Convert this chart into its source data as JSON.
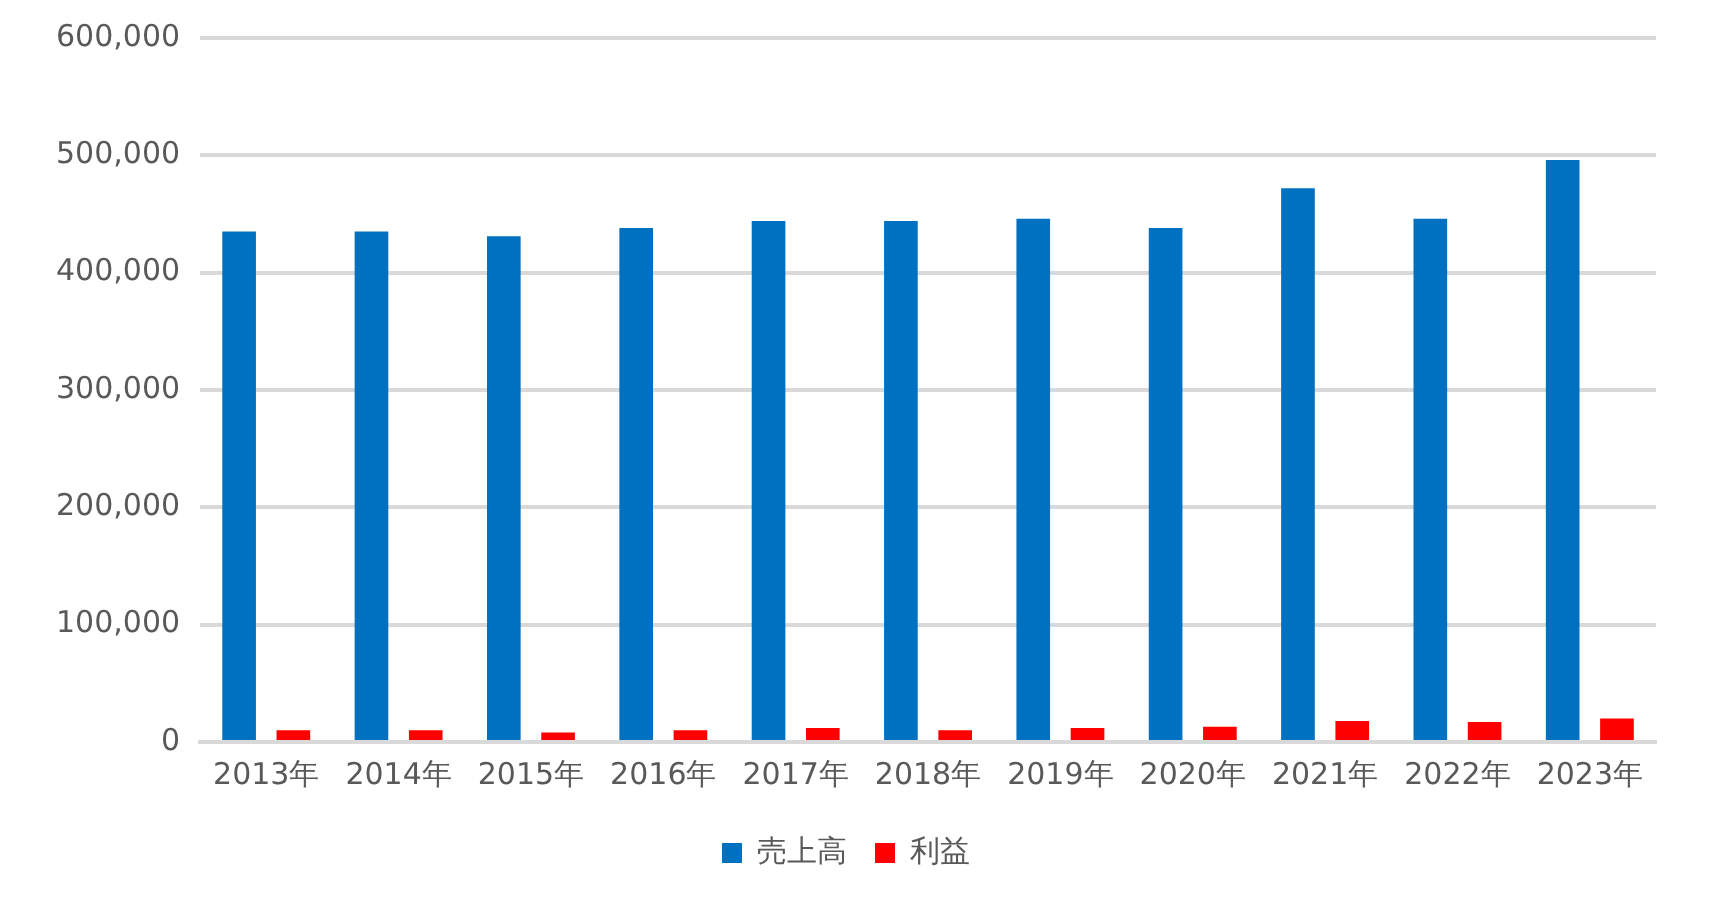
{
  "chart_data": {
    "type": "bar",
    "categories": [
      "2013年",
      "2014年",
      "2015年",
      "2016年",
      "2017年",
      "2018年",
      "2019年",
      "2020年",
      "2021年",
      "2022年",
      "2023年"
    ],
    "series": [
      {
        "name": "売上高",
        "color": "#0070c0",
        "values": [
          435000,
          435000,
          431000,
          438000,
          444000,
          444000,
          446000,
          438000,
          472000,
          446000,
          496000
        ]
      },
      {
        "name": "利益",
        "color": "#ff0000",
        "values": [
          10000,
          10000,
          8000,
          10000,
          12000,
          10000,
          12000,
          13000,
          18000,
          17000,
          20000
        ]
      }
    ],
    "ylim": [
      0,
      600000
    ],
    "yticks": [
      {
        "value": 0,
        "label": "0"
      },
      {
        "value": 100000,
        "label": "100,000"
      },
      {
        "value": 200000,
        "label": "200,000"
      },
      {
        "value": 300000,
        "label": "300,000"
      },
      {
        "value": 400000,
        "label": "400,000"
      },
      {
        "value": 500000,
        "label": "500,000"
      },
      {
        "value": 600000,
        "label": "600,000"
      }
    ],
    "grid": "y",
    "legend": "bottom"
  }
}
